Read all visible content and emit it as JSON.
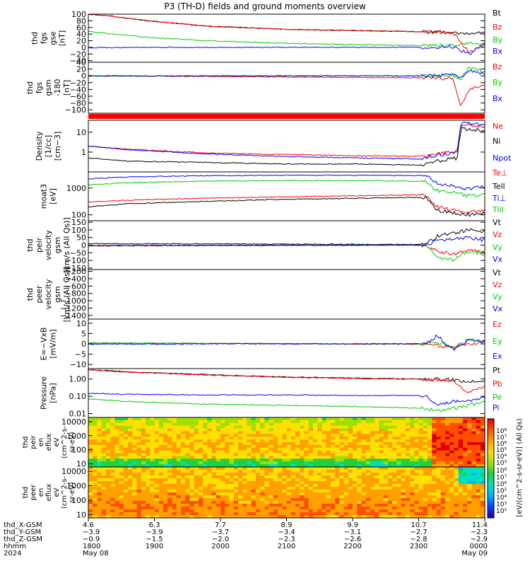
{
  "title": "P3 (TH-D) fields and ground moments overview",
  "chart_data": {
    "type": "line",
    "panels": [
      {
        "id": "fgs-gse",
        "ylabel": [
          "thd",
          "fgs",
          "gse",
          "[nT]"
        ],
        "yticks": [
          "100",
          "80",
          "60",
          "40",
          "20",
          "0",
          "−20",
          "−40"
        ],
        "ylim": [
          -45,
          100
        ],
        "log": false,
        "series": [
          {
            "name": "Bt",
            "color": "#000000",
            "x": [
              0,
              0.05,
              0.15,
              0.3,
              0.5,
              0.7,
              0.85,
              0.92,
              0.96,
              1
            ],
            "y": [
              100,
              95,
              80,
              64,
              54,
              50,
              47,
              45,
              40,
              45
            ]
          },
          {
            "name": "Bz",
            "color": "#ff0000",
            "x": [
              0,
              0.05,
              0.15,
              0.3,
              0.5,
              0.7,
              0.85,
              0.92,
              0.96,
              1
            ],
            "y": [
              100,
              95,
              80,
              64,
              54,
              50,
              47,
              45,
              -15,
              10
            ]
          },
          {
            "name": "By",
            "color": "#00cc00",
            "x": [
              0,
              0.05,
              0.15,
              0.3,
              0.5,
              0.7,
              0.85,
              0.92,
              0.96,
              1
            ],
            "y": [
              48,
              42,
              30,
              20,
              12,
              8,
              5,
              4,
              15,
              10
            ]
          },
          {
            "name": "Bx",
            "color": "#0000ff",
            "x": [
              0,
              0.2,
              0.5,
              0.85,
              0.92,
              0.96,
              1
            ],
            "y": [
              -1,
              0,
              0,
              0,
              2,
              -20,
              10
            ]
          }
        ]
      },
      {
        "id": "fgs-gsm",
        "ylabel": [
          "thd",
          "fgs",
          "gsm",
          "-180",
          "[nT]"
        ],
        "yticks": [
          "40",
          "20",
          "0",
          "−20",
          "−40",
          "−60",
          "−80",
          "−100"
        ],
        "ylim": [
          -110,
          40
        ],
        "log": false,
        "series": [
          {
            "name": "Bz",
            "color": "#ff0000",
            "x": [
              0,
              0.3,
              0.6,
              0.85,
              0.92,
              0.94,
              0.96,
              1
            ],
            "y": [
              0,
              -2,
              -4,
              -6,
              -8,
              -90,
              -40,
              -30
            ]
          },
          {
            "name": "By",
            "color": "#00cc00",
            "x": [
              0,
              0.3,
              0.6,
              0.85,
              0.92,
              0.94,
              0.96,
              1
            ],
            "y": [
              -1,
              0,
              0,
              0,
              2,
              -10,
              25,
              10
            ]
          },
          {
            "name": "Bx",
            "color": "#0000ff",
            "x": [
              0,
              0.3,
              0.6,
              0.85,
              0.92,
              0.94,
              0.96,
              1
            ],
            "y": [
              0,
              0,
              0,
              0,
              1,
              -5,
              15,
              5
            ]
          }
        ]
      },
      {
        "id": "density",
        "ylabel": [
          "Density",
          "[1/cc]",
          "[cm−3]"
        ],
        "yticks": [
          "10",
          "1"
        ],
        "ylim": [
          0.1,
          40
        ],
        "log": true,
        "series": [
          {
            "name": "Ne",
            "color": "#ff0000",
            "x": [
              0,
              0.1,
              0.3,
              0.5,
              0.7,
              0.85,
              0.86,
              0.9,
              0.93,
              0.94,
              1
            ],
            "y": [
              2,
              1.4,
              0.9,
              0.75,
              0.65,
              0.6,
              0.7,
              0.9,
              1.0,
              25,
              20
            ]
          },
          {
            "name": "Ni",
            "color": "#000000",
            "x": [
              0,
              0.1,
              0.3,
              0.5,
              0.7,
              0.85,
              0.86,
              0.9,
              0.93,
              0.94,
              1
            ],
            "y": [
              0.5,
              0.35,
              0.3,
              0.25,
              0.25,
              0.22,
              0.3,
              0.4,
              0.5,
              15,
              12
            ]
          },
          {
            "name": "Npot",
            "color": "#0000ff",
            "x": [
              0,
              0.1,
              0.3,
              0.5,
              0.7,
              0.85,
              0.86,
              0.9,
              0.93,
              0.94,
              1
            ],
            "y": [
              2,
              1.3,
              0.8,
              0.6,
              0.5,
              0.45,
              0.6,
              0.8,
              0.9,
              30,
              25
            ]
          }
        ]
      },
      {
        "id": "temp",
        "ylabel": [
          "moat3",
          "[eV]"
        ],
        "yticks": [
          "1000",
          "100"
        ],
        "ylim": [
          60,
          4000
        ],
        "log": true,
        "series": [
          {
            "name": "Te⊥",
            "color": "#ff0000",
            "x": [
              0,
              0.1,
              0.3,
              0.5,
              0.7,
              0.85,
              0.88,
              0.92,
              0.96,
              1
            ],
            "y": [
              300,
              350,
              420,
              470,
              520,
              560,
              200,
              150,
              120,
              150
            ]
          },
          {
            "name": "Tell",
            "color": "#000000",
            "x": [
              0,
              0.1,
              0.3,
              0.5,
              0.7,
              0.85,
              0.88,
              0.92,
              0.96,
              1
            ],
            "y": [
              200,
              260,
              320,
              380,
              420,
              450,
              150,
              120,
              100,
              120
            ]
          },
          {
            "name": "Ti⊥",
            "color": "#0000ff",
            "x": [
              0,
              0.1,
              0.3,
              0.5,
              0.7,
              0.85,
              0.88,
              0.92,
              0.96,
              1
            ],
            "y": [
              2200,
              2600,
              2900,
              3000,
              3000,
              2900,
              1500,
              1200,
              900,
              1200
            ]
          },
          {
            "name": "Till",
            "color": "#00cc00",
            "x": [
              0,
              0.1,
              0.3,
              0.5,
              0.7,
              0.85,
              0.88,
              0.92,
              0.96,
              1
            ],
            "y": [
              1300,
              1600,
              1800,
              1900,
              1900,
              1800,
              800,
              700,
              500,
              600
            ]
          }
        ]
      },
      {
        "id": "peir-vel",
        "ylabel": [
          "thd",
          "peir",
          "velocity",
          "gsm",
          "[km/s (All Qs)]"
        ],
        "yticks": [
          "150",
          "100",
          "50",
          "0",
          "−50",
          "−100",
          "−150"
        ],
        "ylim": [
          -160,
          160
        ],
        "log": false,
        "series": [
          {
            "name": "Vt",
            "color": "#000000",
            "x": [
              0,
              0.3,
              0.6,
              0.85,
              0.88,
              0.92,
              0.96,
              1
            ],
            "y": [
              10,
              8,
              6,
              5,
              60,
              80,
              100,
              90
            ]
          },
          {
            "name": "Vz",
            "color": "#ff0000",
            "x": [
              0,
              0.3,
              0.6,
              0.85,
              0.88,
              0.92,
              0.96,
              1
            ],
            "y": [
              -5,
              -3,
              -2,
              0,
              -40,
              -60,
              -30,
              -50
            ]
          },
          {
            "name": "Vy",
            "color": "#00cc00",
            "x": [
              0,
              0.3,
              0.6,
              0.85,
              0.88,
              0.92,
              0.96,
              1
            ],
            "y": [
              -3,
              -2,
              0,
              0,
              -80,
              -100,
              -40,
              -60
            ]
          },
          {
            "name": "Vx",
            "color": "#0000ff",
            "x": [
              0,
              0.3,
              0.6,
              0.85,
              0.88,
              0.92,
              0.96,
              1
            ],
            "y": [
              -2,
              -1,
              0,
              1,
              30,
              40,
              50,
              30
            ]
          }
        ]
      },
      {
        "id": "peer-vel",
        "ylabel": [
          "thd",
          "peer",
          "velocity",
          "gsm",
          "[km/s (All Qs)]"
        ],
        "yticks": [
          "−200",
          "−400",
          "−600",
          "−800",
          "−1000",
          "−1200",
          "−1400"
        ],
        "ylim": [
          -1500,
          -150
        ],
        "log": false,
        "series": [
          {
            "name": "Vt",
            "color": "#000000",
            "x": [],
            "y": []
          },
          {
            "name": "Vz",
            "color": "#ff0000",
            "x": [],
            "y": []
          },
          {
            "name": "Vy",
            "color": "#00cc00",
            "x": [],
            "y": []
          },
          {
            "name": "Vx",
            "color": "#0000ff",
            "x": [],
            "y": []
          }
        ]
      },
      {
        "id": "efield",
        "ylabel": [
          "E=−VxB",
          "[mV/m]"
        ],
        "yticks": [
          "10",
          "5",
          "0",
          "−5",
          "−10"
        ],
        "ylim": [
          -12,
          12
        ],
        "log": false,
        "series": [
          {
            "name": "Ez",
            "color": "#ff0000",
            "x": [
              0,
              0.3,
              0.6,
              0.85,
              0.88,
              0.92,
              0.96,
              1
            ],
            "y": [
              0.3,
              0.2,
              0,
              -0.2,
              -1,
              -2,
              0,
              1
            ]
          },
          {
            "name": "Ey",
            "color": "#00cc00",
            "x": [
              0,
              0.3,
              0.6,
              0.85,
              0.88,
              0.92,
              0.96,
              1
            ],
            "y": [
              0.5,
              0.2,
              0,
              0,
              1,
              -2,
              2,
              1
            ]
          },
          {
            "name": "Ex",
            "color": "#0000ff",
            "x": [
              0,
              0.3,
              0.6,
              0.85,
              0.88,
              0.92,
              0.96,
              1
            ],
            "y": [
              -0.2,
              0,
              0,
              0,
              4,
              -3,
              2,
              1
            ]
          }
        ]
      },
      {
        "id": "pressure",
        "ylabel": [
          "Pressure",
          "[nPa]"
        ],
        "yticks": [
          "1.00",
          "0.10",
          "0.01"
        ],
        "ylim": [
          0.006,
          4
        ],
        "log": true,
        "series": [
          {
            "name": "Pt",
            "color": "#000000",
            "x": [
              0,
              0.1,
              0.3,
              0.5,
              0.7,
              0.85,
              0.92,
              0.96,
              1
            ],
            "y": [
              3.5,
              2.6,
              1.8,
              1.3,
              1.1,
              1.0,
              0.9,
              0.7,
              0.9
            ]
          },
          {
            "name": "Pb",
            "color": "#ff0000",
            "x": [
              0,
              0.1,
              0.3,
              0.5,
              0.7,
              0.85,
              0.92,
              0.96,
              1
            ],
            "y": [
              3.4,
              2.5,
              1.7,
              1.25,
              1.05,
              0.95,
              0.85,
              0.15,
              0.4
            ]
          },
          {
            "name": "Pe",
            "color": "#00cc00",
            "x": [
              0,
              0.1,
              0.3,
              0.5,
              0.7,
              0.85,
              0.88,
              0.92,
              0.96,
              1
            ],
            "y": [
              0.07,
              0.05,
              0.035,
              0.03,
              0.025,
              0.02,
              0.015,
              0.02,
              0.03,
              0.05
            ]
          },
          {
            "name": "Pi",
            "color": "#0000ff",
            "x": [
              0,
              0.1,
              0.3,
              0.5,
              0.7,
              0.85,
              0.88,
              0.92,
              0.96,
              1
            ],
            "y": [
              0.15,
              0.13,
              0.12,
              0.12,
              0.11,
              0.11,
              0.03,
              0.05,
              0.06,
              0.08
            ]
          }
        ]
      }
    ],
    "spectrograms": [
      {
        "id": "peir-eflux",
        "ylabel": [
          "thd",
          "peir",
          "en",
          "eflux",
          "eV",
          "(cm^2-s-",
          "sr-eV)"
        ],
        "yticks": [
          "10000",
          "1000",
          "100",
          "10"
        ]
      },
      {
        "id": "peer-eflux",
        "ylabel": [
          "thd",
          "peer",
          "en",
          "eflux",
          "eV",
          "(cm^2-s-",
          "sr-eV)"
        ],
        "yticks": [
          "10000",
          "1000",
          "100",
          "10"
        ]
      }
    ],
    "colorbar": {
      "label": "[eV/(cm^2-s-sr-eV)] (All Qs)",
      "ticks_top": [
        "10⁸",
        "10⁷",
        "10⁶",
        "10⁵",
        "10⁴",
        "10³"
      ],
      "ticks_bottom": [
        "10⁸",
        "10⁷",
        "10⁶",
        "10⁵",
        "10⁴",
        "10³",
        "10²"
      ]
    },
    "xaxis": {
      "row_labels": [
        "thd_X-GSM",
        "thd_Y-GSM",
        "thd_Z-GSM",
        "hhmm",
        "2024"
      ],
      "ticks": [
        {
          "x": 0.0,
          "X": "4.6",
          "Y": "−3.9",
          "Z": "−0.9",
          "t": "1800",
          "d": "May 08"
        },
        {
          "x": 0.1667,
          "X": "6.3",
          "Y": "−3.9",
          "Z": "−1.5",
          "t": "1900",
          "d": ""
        },
        {
          "x": 0.3333,
          "X": "7.7",
          "Y": "−3.7",
          "Z": "−2.0",
          "t": "2000",
          "d": ""
        },
        {
          "x": 0.5,
          "X": "8.9",
          "Y": "−3.4",
          "Z": "−2.3",
          "t": "2100",
          "d": ""
        },
        {
          "x": 0.6667,
          "X": "9.9",
          "Y": "−3.1",
          "Z": "−2.6",
          "t": "2200",
          "d": ""
        },
        {
          "x": 0.8333,
          "X": "10.7",
          "Y": "−2.7",
          "Z": "−2.8",
          "t": "2300",
          "d": ""
        },
        {
          "x": 1.0,
          "X": "11.4",
          "Y": "−2.3",
          "Z": "−2.9",
          "t": "0000",
          "d": "May 09"
        }
      ]
    }
  }
}
